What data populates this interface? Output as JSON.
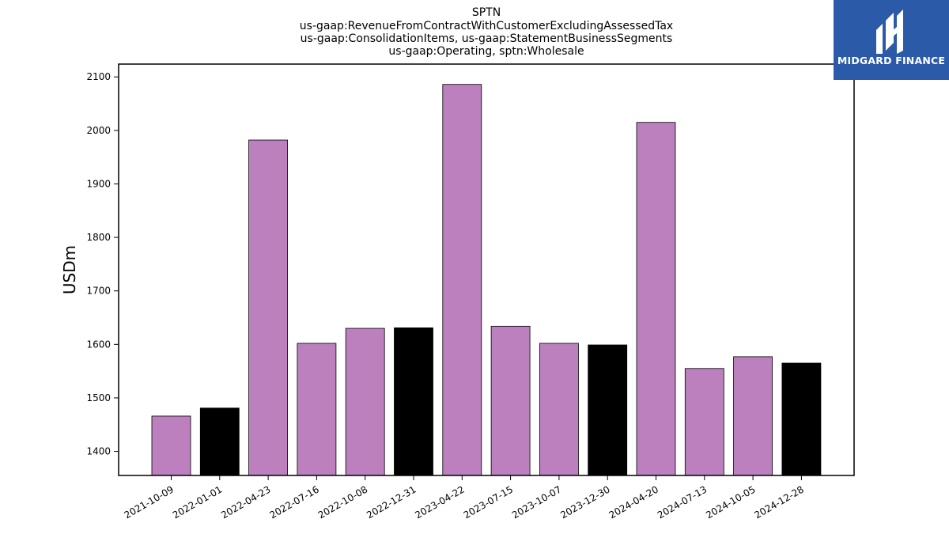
{
  "logo": {
    "text": "MIDGARD FINANCE",
    "icon": "midgard-logo-icon",
    "background": "#2b5aa8"
  },
  "chart_data": {
    "type": "bar",
    "title_lines": [
      "SPTN",
      "us-gaap:RevenueFromContractWithCustomerExcludingAssessedTax",
      "us-gaap:ConsolidationItems, us-gaap:StatementBusinessSegments",
      "us-gaap:Operating, sptn:Wholesale"
    ],
    "ylabel": "USDm",
    "xlabel": "",
    "categories": [
      "2021-10-09",
      "2022-01-01",
      "2022-04-23",
      "2022-07-16",
      "2022-10-08",
      "2022-12-31",
      "2023-04-22",
      "2023-07-15",
      "2023-10-07",
      "2023-12-30",
      "2024-04-20",
      "2024-07-13",
      "2024-10-05",
      "2024-12-28"
    ],
    "values": [
      1466,
      1481,
      1982,
      1602,
      1630,
      1631,
      2086,
      1634,
      1602,
      1599,
      2015,
      1555,
      1577,
      1565
    ],
    "colors": [
      "#bb80bd",
      "#000000",
      "#bb80bd",
      "#bb80bd",
      "#bb80bd",
      "#000000",
      "#bb80bd",
      "#bb80bd",
      "#bb80bd",
      "#000000",
      "#bb80bd",
      "#bb80bd",
      "#bb80bd",
      "#000000"
    ],
    "ylim": [
      1355,
      2124
    ],
    "yticks": [
      1400,
      1500,
      1600,
      1700,
      1800,
      1900,
      2000,
      2100
    ],
    "grid": false,
    "legend": "none"
  }
}
